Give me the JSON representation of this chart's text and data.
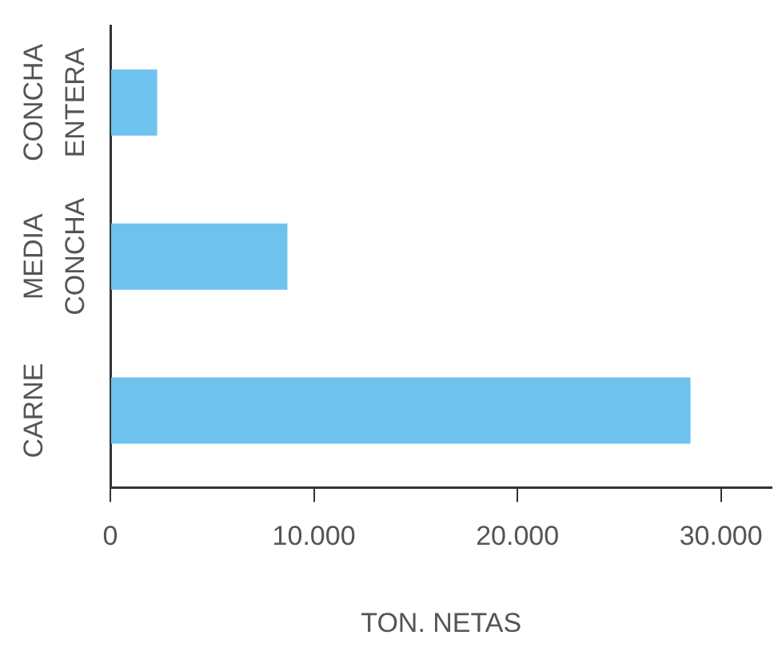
{
  "chart_data": {
    "type": "bar",
    "orientation": "horizontal",
    "xlabel": "TON. NETAS",
    "categories": [
      "CONCHA ENTERA",
      "MEDIA CONCHA",
      "CARNE"
    ],
    "values": [
      2300,
      8700,
      28500
    ],
    "color": "#6ec2ee",
    "xlim": [
      0,
      32500
    ],
    "xticks": [
      0,
      {
        "value": 10000,
        "label": "10.000"
      },
      {
        "value": 20000,
        "label": "20.000"
      },
      {
        "value": 30000,
        "label": "30.000"
      }
    ],
    "grid": false,
    "legend": false
  }
}
